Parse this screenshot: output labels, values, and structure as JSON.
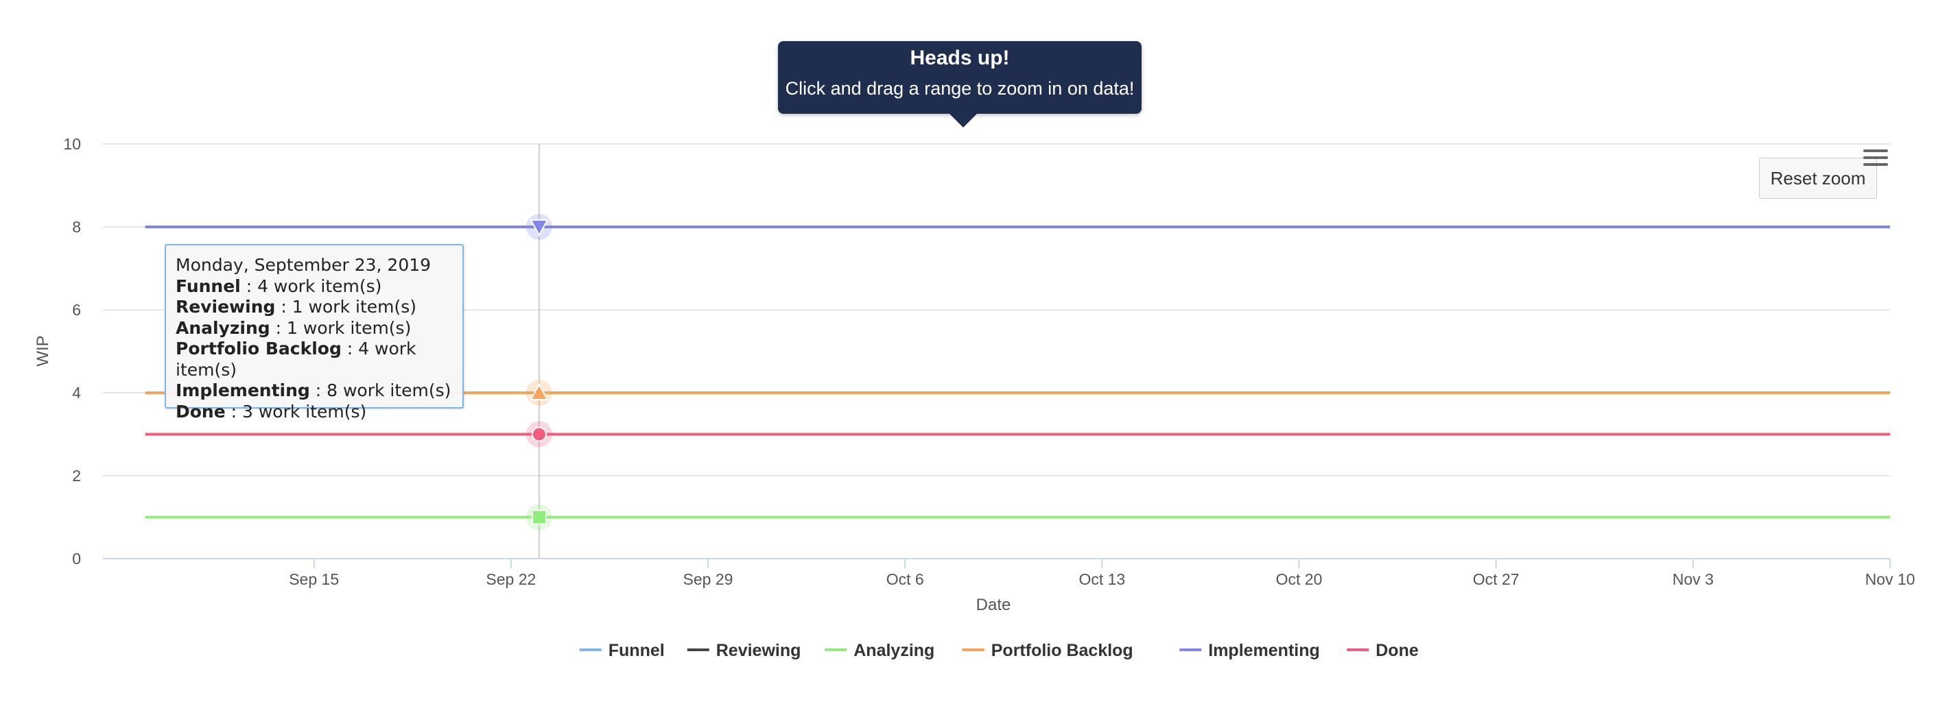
{
  "chart_data": {
    "type": "line",
    "xlabel": "Date",
    "ylabel": "WIP",
    "ylim": [
      0,
      10
    ],
    "yticks": [
      0,
      2,
      4,
      6,
      8,
      10
    ],
    "x_range": [
      "2019-09-08",
      "2019-11-10"
    ],
    "xticks": [
      {
        "date": "2019-09-15",
        "label": "Sep 15"
      },
      {
        "date": "2019-09-22",
        "label": "Sep 22"
      },
      {
        "date": "2019-09-29",
        "label": "Sep 29"
      },
      {
        "date": "2019-10-06",
        "label": "Oct 6"
      },
      {
        "date": "2019-10-13",
        "label": "Oct 13"
      },
      {
        "date": "2019-10-20",
        "label": "Oct 20"
      },
      {
        "date": "2019-10-27",
        "label": "Oct 27"
      },
      {
        "date": "2019-11-03",
        "label": "Nov 3"
      },
      {
        "date": "2019-11-10",
        "label": "Nov 10"
      }
    ],
    "grid": true,
    "legend_position": "bottom",
    "series": [
      {
        "name": "Funnel",
        "color": "#7cb5ec",
        "marker": "circle",
        "x": [
          "2019-09-09",
          "2019-11-10"
        ],
        "y": [
          4,
          4
        ]
      },
      {
        "name": "Reviewing",
        "color": "#434348",
        "marker": "diamond",
        "x": [
          "2019-09-09",
          "2019-11-10"
        ],
        "y": [
          1,
          1
        ]
      },
      {
        "name": "Analyzing",
        "color": "#90ed7d",
        "marker": "square",
        "x": [
          "2019-09-09",
          "2019-11-10"
        ],
        "y": [
          1,
          1
        ]
      },
      {
        "name": "Portfolio Backlog",
        "color": "#f7a35c",
        "marker": "triangle",
        "x": [
          "2019-09-09",
          "2019-11-10"
        ],
        "y": [
          4,
          4
        ]
      },
      {
        "name": "Implementing",
        "color": "#8085e9",
        "marker": "triangle-down",
        "x": [
          "2019-09-09",
          "2019-11-10"
        ],
        "y": [
          8,
          8
        ]
      },
      {
        "name": "Done",
        "color": "#f15c80",
        "marker": "circle",
        "x": [
          "2019-09-09",
          "2019-11-10"
        ],
        "y": [
          3,
          3
        ]
      }
    ],
    "hover_date": "2019-09-23"
  },
  "notice": {
    "title": "Heads up!",
    "message": "Click and drag a range to zoom in on data!"
  },
  "reset_zoom_label": "Reset zoom",
  "tooltip": {
    "date": "Monday, September 23, 2019",
    "rows": [
      {
        "name": "Funnel",
        "value": " : 4 work item(s)"
      },
      {
        "name": "Reviewing",
        "value": " : 1 work item(s)"
      },
      {
        "name": "Analyzing",
        "value": " : 1 work item(s)"
      },
      {
        "name": "Portfolio Backlog",
        "value": " : 4 work item(s)"
      },
      {
        "name": "Implementing",
        "value": " : 8 work item(s)"
      },
      {
        "name": "Done",
        "value": " : 3 work item(s)"
      }
    ]
  }
}
